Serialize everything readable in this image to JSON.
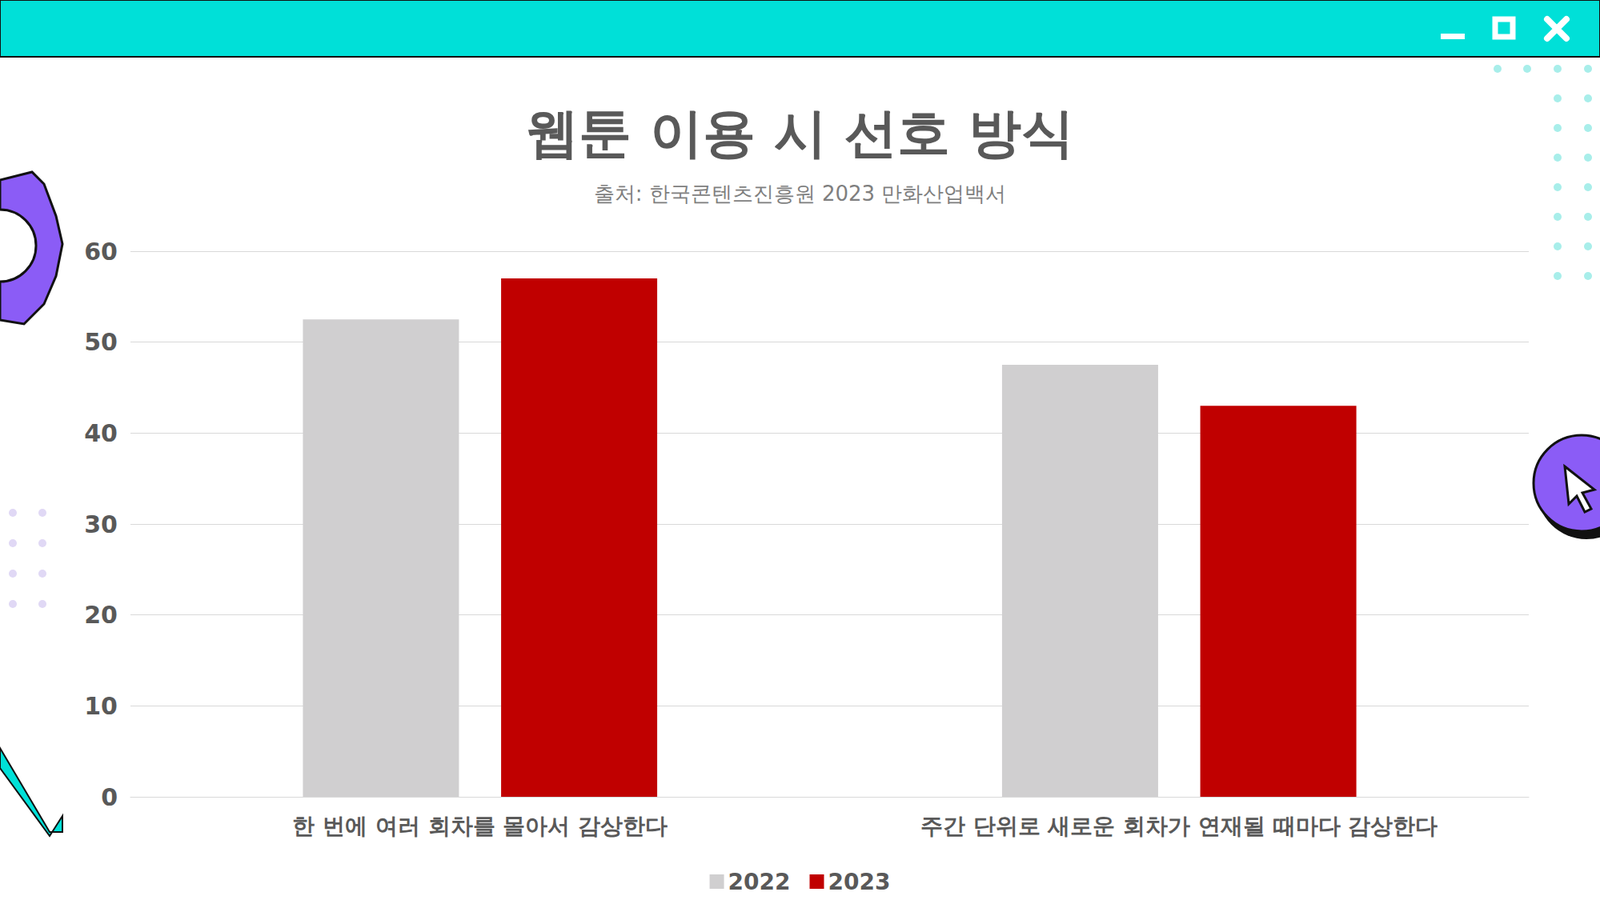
{
  "chart_data": {
    "type": "bar",
    "title": "웹툰 이용 시 선호 방식",
    "subtitle": "출처: 한국콘텐츠진흥원 2023 만화산업백서",
    "categories": [
      "한 번에 여러 회차를 몰아서 감상한다",
      "주간 단위로 새로운 회차가 연재될 때마다 감상한다"
    ],
    "series": [
      {
        "name": "2022",
        "color": "#d0cfd0",
        "values": [
          52.5,
          47.5
        ]
      },
      {
        "name": "2023",
        "color": "#c00000",
        "values": [
          57.0,
          43.0
        ]
      }
    ],
    "ylim": [
      0,
      60
    ],
    "yticks": [
      0,
      10,
      20,
      30,
      40,
      50,
      60
    ],
    "grid": true,
    "legend": "bottom"
  }
}
